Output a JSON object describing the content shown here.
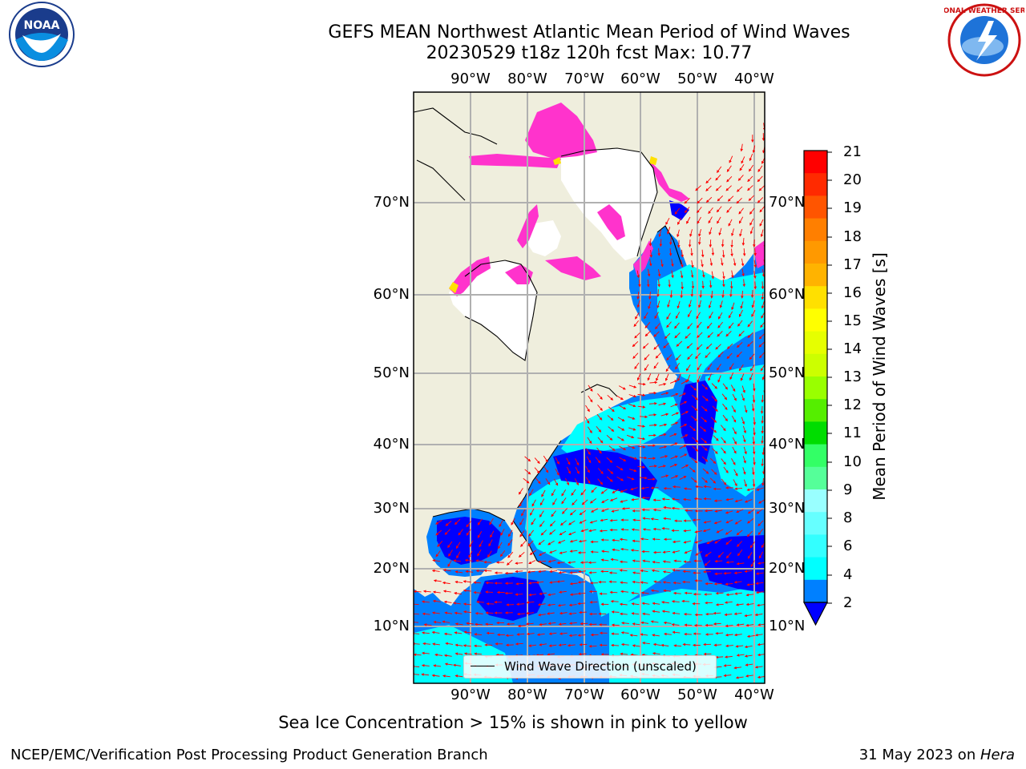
{
  "title": {
    "line1": "GEFS MEAN Northwest Atlantic Mean Period of Wind Waves",
    "line2": "20230529 t18z 120h fcst   Max: 10.77"
  },
  "logos": {
    "left": {
      "icon": "noaa-logo-icon",
      "text": "NOAA"
    },
    "right": {
      "icon": "nws-logo-icon",
      "text": "NATIONAL WEATHER SERVICE"
    }
  },
  "map": {
    "lon_labels": [
      "90°W",
      "80°W",
      "70°W",
      "60°W",
      "50°W",
      "40°W"
    ],
    "lat_labels_left": [
      "70°N",
      "60°N",
      "50°N",
      "40°N",
      "30°N",
      "20°N",
      "10°N"
    ],
    "lat_labels_right": [
      "70°N",
      "60°N",
      "50°N",
      "40°N",
      "30°N",
      "20°N",
      "10°N"
    ],
    "legend_text": "Wind Wave Direction (unscaled)",
    "colors": {
      "land": "#efeedd",
      "ice_pink": "#ff33cc",
      "ice_yellow": "#ffe000",
      "band_2_4": "#0080ff",
      "band_4_6": "#00ffff",
      "band_below_2": "#0000ff",
      "arrows": "#ff0000",
      "grid": "#b0b0b0"
    }
  },
  "colorbar": {
    "label": "Mean Period of Wind Waves [s]",
    "ticks": [
      "21",
      "20",
      "19",
      "18",
      "17",
      "16",
      "15",
      "14",
      "13",
      "12",
      "11",
      "10",
      "9",
      "8",
      "6",
      "4",
      "2"
    ],
    "colors_top_to_bottom": [
      "#ff0000",
      "#ff2a00",
      "#ff5500",
      "#ff7f00",
      "#ff9900",
      "#ffb300",
      "#ffe000",
      "#ffff00",
      "#e6ff00",
      "#ccff00",
      "#99ff00",
      "#55ee00",
      "#00dd00",
      "#33ff66",
      "#55ff99",
      "#99ffff",
      "#66ffff",
      "#33ffff",
      "#00ffff",
      "#0080ff"
    ],
    "under_color": "#0000ff"
  },
  "footer": {
    "note": "Sea Ice Concentration > 15% is shown in pink to yellow",
    "credit": "NCEP/EMC/Verification Post Processing Product Generation Branch",
    "date": "31 May 2023 on ",
    "host": "Hera"
  }
}
